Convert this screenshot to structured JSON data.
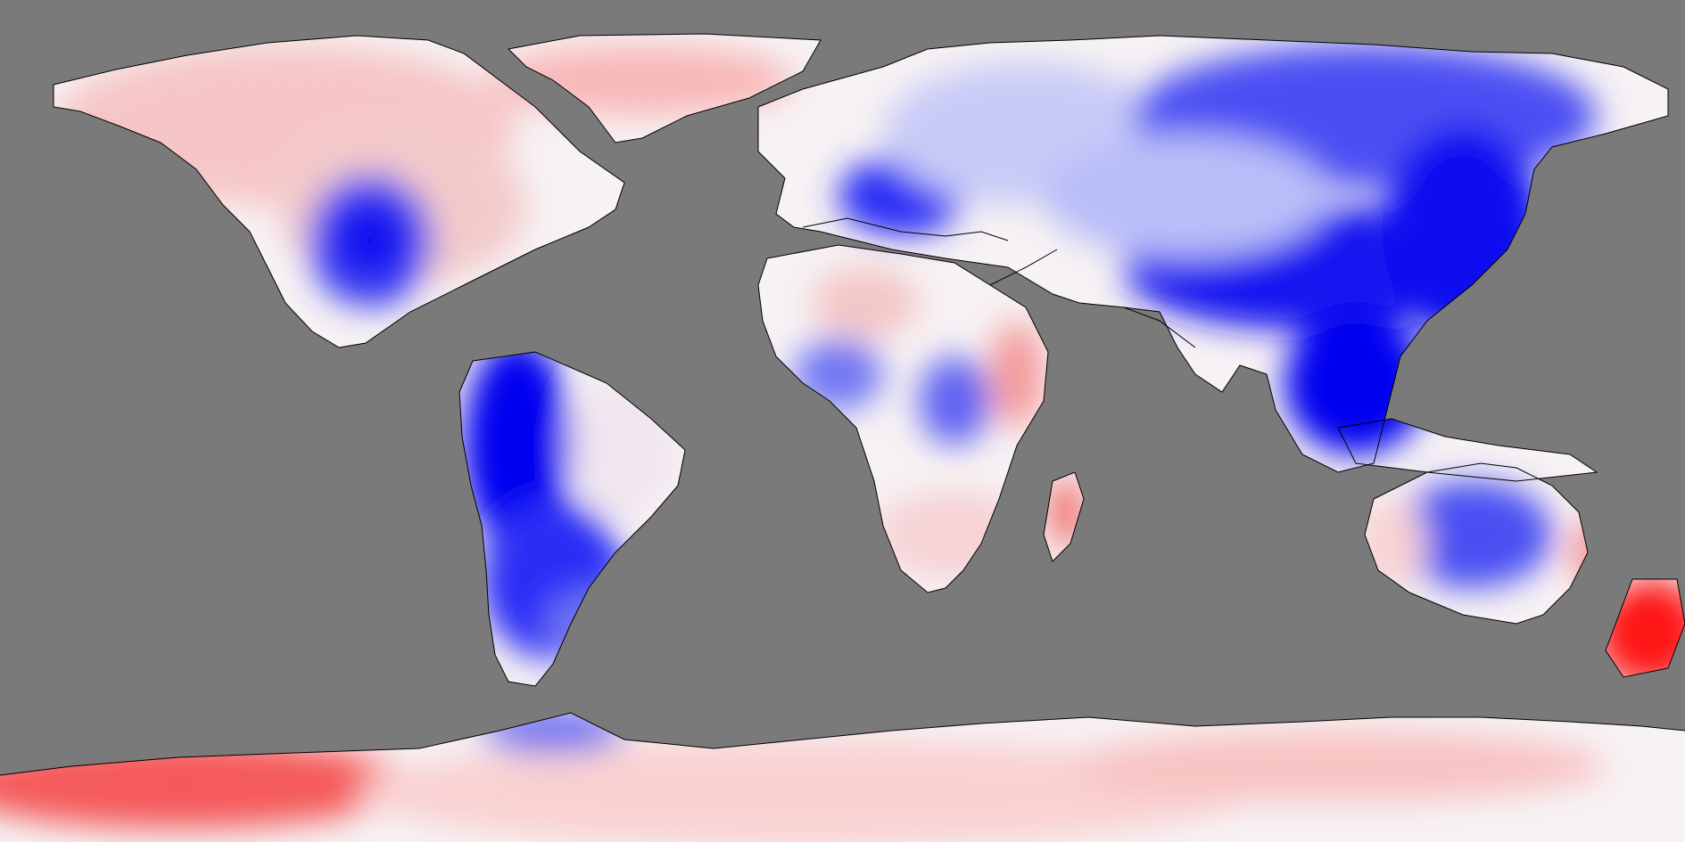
{
  "map": {
    "projection": "equirectangular",
    "extent": {
      "lon": [
        -180,
        180
      ],
      "lat": [
        -90,
        90
      ]
    },
    "background_color": "#7a7a7a",
    "coastline_color": "#000000",
    "color_scale": {
      "negative": "#0000ff",
      "neutral": "#ffffff",
      "positive": "#ff0000"
    },
    "regions": [
      {
        "name": "north-america",
        "anomaly": "positive"
      },
      {
        "name": "central-us",
        "anomaly": "negative"
      },
      {
        "name": "south-america-west",
        "anomaly": "strong-negative"
      },
      {
        "name": "europe",
        "anomaly": "negative"
      },
      {
        "name": "africa",
        "anomaly": "mixed"
      },
      {
        "name": "asia-east",
        "anomaly": "strong-negative"
      },
      {
        "name": "southeast-asia",
        "anomaly": "strong-negative"
      },
      {
        "name": "australia",
        "anomaly": "negative"
      },
      {
        "name": "new-zealand",
        "anomaly": "strong-positive"
      },
      {
        "name": "greenland",
        "anomaly": "positive"
      },
      {
        "name": "antarctica",
        "anomaly": "positive"
      }
    ]
  }
}
